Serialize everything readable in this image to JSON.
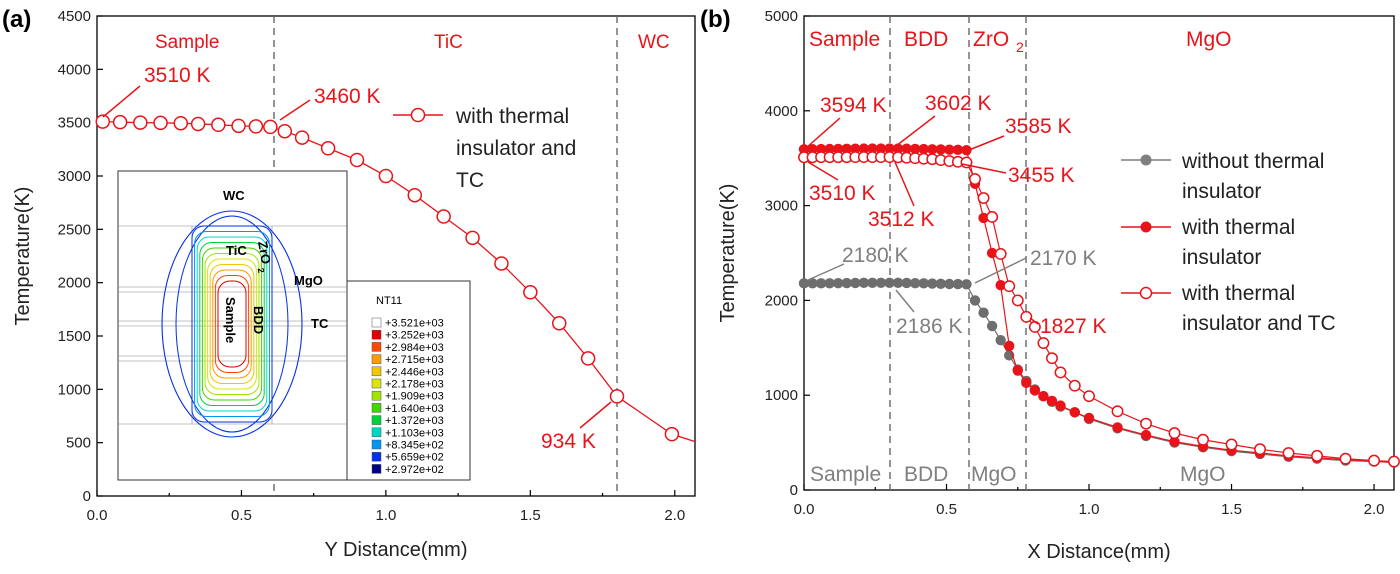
{
  "chart_data": [
    {
      "panel": "(a)",
      "type": "line",
      "xlabel": "Y Distance(mm)",
      "ylabel": "Temperature(K)",
      "xlim": [
        0.0,
        2.07
      ],
      "ylim": [
        0,
        4500
      ],
      "xticks": [
        "0.0",
        "0.5",
        "1.0",
        "1.5",
        "2.0"
      ],
      "yticks": [
        "0",
        "500",
        "1000",
        "1500",
        "2000",
        "2500",
        "3000",
        "3500",
        "4000",
        "4500"
      ],
      "regions": [
        "Sample",
        "TiC",
        "WC"
      ],
      "boundaries": [
        0.6,
        1.8
      ],
      "series": [
        {
          "name": "with thermal insulator and TC",
          "color": "#e8141a",
          "marker": "open-circle",
          "x": [
            0.02,
            0.08,
            0.15,
            0.22,
            0.29,
            0.35,
            0.42,
            0.49,
            0.55,
            0.6,
            0.65,
            0.71,
            0.8,
            0.9,
            1.0,
            1.1,
            1.2,
            1.3,
            1.4,
            1.5,
            1.6,
            1.7,
            1.8,
            1.99,
            2.07
          ],
          "y": [
            3510,
            3505,
            3500,
            3498,
            3495,
            3488,
            3480,
            3470,
            3465,
            3460,
            3420,
            3360,
            3260,
            3150,
            3000,
            2820,
            2620,
            2420,
            2180,
            1910,
            1620,
            1290,
            934,
            580,
            510
          ]
        }
      ],
      "annotations": [
        "3510 K",
        "3460 K",
        "934 K"
      ],
      "legend": [
        "with thermal",
        "insulator and",
        "TC"
      ],
      "inset": {
        "labels": [
          "WC",
          "TiC",
          "ZrO",
          "2",
          "MgO",
          "Sample",
          "BDD",
          "TC"
        ],
        "legend_title": "NT11",
        "legend_values": [
          "+3.521e+03",
          "+3.252e+03",
          "+2.984e+03",
          "+2.715e+03",
          "+2.446e+03",
          "+2.178e+03",
          "+1.909e+03",
          "+1.640e+03",
          "+1.372e+03",
          "+1.103e+03",
          "+8.345e+02",
          "+5.659e+02",
          "+2.972e+02"
        ],
        "legend_colors": [
          "#ffffff",
          "#e00000",
          "#ff4a00",
          "#ff9a00",
          "#f3c800",
          "#d8e800",
          "#9ee600",
          "#3ed800",
          "#00d23c",
          "#00d6c8",
          "#0096f0",
          "#0030e6",
          "#000080"
        ]
      }
    },
    {
      "panel": "(b)",
      "type": "scatter",
      "xlabel": "X Distance(mm)",
      "ylabel": "Temperature(K)",
      "xlim": [
        0.0,
        2.07
      ],
      "ylim": [
        0,
        5000
      ],
      "xticks": [
        "0.0",
        "0.5",
        "1.0",
        "1.5",
        "2.0"
      ],
      "yticks": [
        "0",
        "1000",
        "2000",
        "3000",
        "4000",
        "5000"
      ],
      "regions_top": [
        "Sample",
        "BDD",
        "ZrO",
        "2",
        "MgO"
      ],
      "regions_bottom": [
        "Sample",
        "BDD",
        "MgO",
        "MgO"
      ],
      "boundaries": [
        0.3,
        0.57,
        0.77
      ],
      "series": [
        {
          "name": "without thermal insulator",
          "color": "#6e6e6e",
          "marker": "filled",
          "x": [
            0.0,
            0.03,
            0.06,
            0.09,
            0.12,
            0.15,
            0.18,
            0.21,
            0.24,
            0.27,
            0.3,
            0.33,
            0.36,
            0.39,
            0.42,
            0.45,
            0.48,
            0.51,
            0.54,
            0.57,
            0.6,
            0.63,
            0.66,
            0.69,
            0.72,
            0.75,
            0.78,
            0.81,
            0.84,
            0.87,
            0.9,
            0.95,
            1.0,
            1.1,
            1.2,
            1.3,
            1.4,
            1.5,
            1.6,
            1.7,
            1.8,
            1.9,
            2.0,
            2.07
          ],
          "y": [
            2180,
            2180,
            2180,
            2180,
            2182,
            2183,
            2184,
            2185,
            2186,
            2186,
            2186,
            2185,
            2184,
            2182,
            2180,
            2178,
            2175,
            2173,
            2172,
            2170,
            2000,
            1870,
            1730,
            1580,
            1420,
            1270,
            1150,
            1060,
            990,
            930,
            880,
            820,
            750,
            650,
            570,
            500,
            450,
            410,
            380,
            350,
            330,
            310,
            300,
            290
          ]
        },
        {
          "name": "with thermal insulator",
          "color": "#e8141a",
          "marker": "filled",
          "x": [
            0.0,
            0.03,
            0.06,
            0.09,
            0.12,
            0.15,
            0.18,
            0.21,
            0.24,
            0.27,
            0.3,
            0.33,
            0.36,
            0.39,
            0.42,
            0.45,
            0.48,
            0.51,
            0.54,
            0.57,
            0.6,
            0.63,
            0.66,
            0.69,
            0.72,
            0.75,
            0.78,
            0.81,
            0.84,
            0.87,
            0.9,
            0.95,
            1.0,
            1.1,
            1.2,
            1.3,
            1.4,
            1.5,
            1.6,
            1.7,
            1.8,
            1.9,
            2.0,
            2.07
          ],
          "y": [
            3594,
            3595,
            3596,
            3597,
            3598,
            3599,
            3600,
            3601,
            3602,
            3602,
            3602,
            3601,
            3600,
            3598,
            3596,
            3594,
            3592,
            3590,
            3588,
            3585,
            3230,
            2870,
            2500,
            2160,
            1520,
            1260,
            1130,
            1050,
            990,
            940,
            890,
            820,
            760,
            660,
            580,
            510,
            460,
            420,
            390,
            360,
            340,
            320,
            305,
            290
          ]
        },
        {
          "name": "with thermal insulator and TC",
          "color": "#e8141a",
          "marker": "open-circle",
          "x": [
            0.0,
            0.03,
            0.06,
            0.09,
            0.12,
            0.15,
            0.18,
            0.21,
            0.24,
            0.27,
            0.3,
            0.33,
            0.36,
            0.39,
            0.42,
            0.45,
            0.48,
            0.51,
            0.54,
            0.57,
            0.6,
            0.63,
            0.66,
            0.69,
            0.72,
            0.75,
            0.78,
            0.81,
            0.84,
            0.87,
            0.9,
            0.95,
            1.0,
            1.1,
            1.2,
            1.3,
            1.4,
            1.5,
            1.6,
            1.7,
            1.8,
            1.9,
            2.0,
            2.07
          ],
          "y": [
            3510,
            3510,
            3511,
            3511,
            3511,
            3511,
            3512,
            3512,
            3512,
            3512,
            3512,
            3510,
            3505,
            3500,
            3495,
            3490,
            3480,
            3470,
            3462,
            3455,
            3280,
            3080,
            2880,
            2490,
            2150,
            2000,
            1827,
            1720,
            1550,
            1390,
            1240,
            1100,
            990,
            830,
            700,
            600,
            530,
            480,
            430,
            390,
            360,
            330,
            310,
            300
          ]
        }
      ],
      "annotations_red": [
        "3594 K",
        "3602 K",
        "3585 K",
        "3455 K",
        "3510 K",
        "3512 K",
        "1827 K"
      ],
      "annotations_grey": [
        "2180 K",
        "2170 K",
        "2186 K"
      ],
      "legend": [
        "without thermal",
        "insulator",
        "with thermal",
        "insulator",
        "with thermal",
        "insulator and TC"
      ]
    }
  ]
}
